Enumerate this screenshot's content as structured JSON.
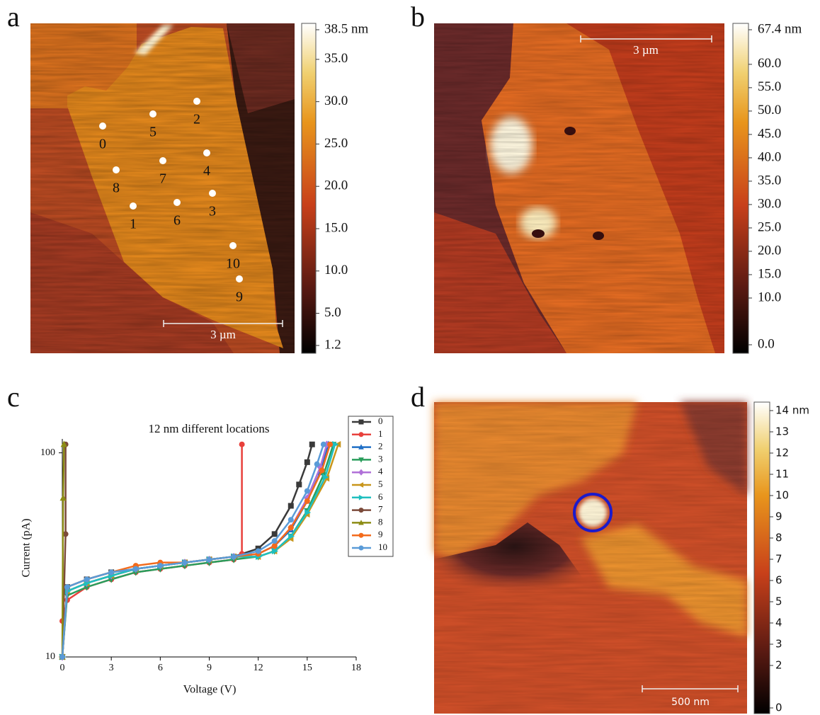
{
  "panel_a": {
    "label": "a",
    "scale_bar": "3 µm",
    "points": [
      "0",
      "1",
      "2",
      "3",
      "4",
      "5",
      "6",
      "7",
      "8",
      "9",
      "10"
    ],
    "colorbar": {
      "range": [
        1.2,
        38.5
      ],
      "ticks": [
        {
          "value": 38.5,
          "label": "38.5 nm"
        },
        {
          "value": 35,
          "label": "35.0"
        },
        {
          "value": 30,
          "label": "30.0"
        },
        {
          "value": 25,
          "label": "25.0"
        },
        {
          "value": 20,
          "label": "20.0"
        },
        {
          "value": 15,
          "label": "15.0"
        },
        {
          "value": 10,
          "label": "10.0"
        },
        {
          "value": 5,
          "label": "5.0"
        },
        {
          "value": 1.2,
          "label": "1.2"
        }
      ]
    }
  },
  "panel_b": {
    "label": "b",
    "scale_bar": "3 µm",
    "colorbar": {
      "range": [
        0,
        67.4
      ],
      "ticks": [
        {
          "value": 67.4,
          "label": "67.4 nm"
        },
        {
          "value": 60,
          "label": "60.0"
        },
        {
          "value": 55,
          "label": "55.0"
        },
        {
          "value": 50,
          "label": "50.0"
        },
        {
          "value": 45,
          "label": "45.0"
        },
        {
          "value": 40,
          "label": "40.0"
        },
        {
          "value": 35,
          "label": "35.0"
        },
        {
          "value": 30,
          "label": "30.0"
        },
        {
          "value": 25,
          "label": "25.0"
        },
        {
          "value": 20,
          "label": "20.0"
        },
        {
          "value": 15,
          "label": "15.0"
        },
        {
          "value": 10,
          "label": "10.0"
        },
        {
          "value": 0,
          "label": "0.0"
        }
      ]
    }
  },
  "panel_c": {
    "label": "c"
  },
  "panel_d": {
    "label": "d",
    "scale_bar": "500 nm",
    "colorbar": {
      "range": [
        0,
        14
      ],
      "ticks": [
        {
          "value": 14,
          "label": "14 nm"
        },
        13,
        12,
        11,
        10,
        9,
        8,
        7,
        6,
        5,
        4,
        3,
        2,
        0
      ]
    }
  },
  "chart_data": {
    "type": "line",
    "title": "12 nm different locations",
    "x_label": "Voltage (V)",
    "y_label": "Current (pA)",
    "xlim": [
      0,
      18
    ],
    "xticks": [
      0,
      3,
      6,
      9,
      12,
      15,
      18
    ],
    "ylim": [
      10,
      117
    ],
    "yticks": [
      10,
      100
    ],
    "log_y": true,
    "series": [
      {
        "name": "0",
        "color": "#3a3a3a",
        "marker": "square",
        "x": [
          0,
          0.3,
          1.5,
          3,
          4.5,
          6,
          7.5,
          9,
          10.5,
          12,
          13,
          14,
          14.5,
          15,
          15.3
        ],
        "values": [
          10,
          22,
          24,
          26,
          27,
          28,
          29,
          30,
          31,
          34,
          40,
          55,
          70,
          90,
          110
        ]
      },
      {
        "name": "1",
        "color": "#e8413c",
        "marker": "circle",
        "x": [
          0,
          0.3,
          1.5,
          3,
          4.5,
          6,
          7.5,
          9,
          10.5,
          11,
          11
        ],
        "values": [
          15,
          19,
          22,
          24,
          26,
          27,
          28,
          29,
          30,
          32,
          110
        ]
      },
      {
        "name": "2",
        "color": "#1f6fc6",
        "marker": "up",
        "x": [
          0,
          0.3,
          1.5,
          3,
          4.5,
          6,
          7.5,
          9,
          10.5,
          12,
          13,
          14,
          15,
          15.8,
          16.3
        ],
        "values": [
          10,
          21,
          23,
          25,
          27,
          28,
          29,
          30,
          31,
          32,
          35,
          42,
          58,
          80,
          110
        ]
      },
      {
        "name": "3",
        "color": "#2a9d5c",
        "marker": "down",
        "x": [
          0,
          0.3,
          1.5,
          3,
          4.5,
          6,
          7.5,
          9,
          10.5,
          12,
          13,
          14,
          15,
          16,
          16.6
        ],
        "values": [
          10,
          20,
          22,
          24,
          26,
          27,
          28,
          29,
          30,
          31,
          33,
          39,
          52,
          78,
          110
        ]
      },
      {
        "name": "4",
        "color": "#b070d8",
        "marker": "diamond",
        "x": [
          0,
          0.3,
          1.5,
          3,
          4.5,
          6,
          7.5,
          9,
          10.5,
          12,
          13,
          14,
          15,
          15.8,
          16.2
        ],
        "values": [
          10,
          21,
          23,
          25,
          27,
          28,
          29,
          30,
          31,
          32,
          35,
          43,
          60,
          85,
          110
        ]
      },
      {
        "name": "5",
        "color": "#c8951a",
        "marker": "left",
        "x": [
          0,
          0.3,
          1.5,
          3,
          4.5,
          6,
          7.5,
          9,
          10.5,
          12,
          13,
          14,
          15,
          16.2,
          16.9
        ],
        "values": [
          10,
          21,
          23,
          25,
          27,
          28,
          29,
          30,
          31,
          31,
          33,
          38,
          50,
          75,
          110
        ]
      },
      {
        "name": "6",
        "color": "#1fbfbf",
        "marker": "right",
        "x": [
          0,
          0.3,
          1.5,
          3,
          4.5,
          6,
          7.5,
          9,
          10.5,
          12,
          13,
          14,
          15,
          16.1,
          16.7
        ],
        "values": [
          10,
          21,
          23,
          25,
          27,
          28,
          29,
          30,
          31,
          31,
          33,
          39,
          51,
          76,
          110
        ]
      },
      {
        "name": "7",
        "color": "#7b4a3a",
        "marker": "circle",
        "x": [
          0,
          0.2,
          0.2
        ],
        "values": [
          10,
          40,
          110
        ]
      },
      {
        "name": "8",
        "color": "#8c8c14",
        "marker": "up",
        "x": [
          0,
          0.05,
          0.1
        ],
        "values": [
          10,
          60,
          110
        ]
      },
      {
        "name": "9",
        "color": "#f36b1c",
        "marker": "circle",
        "x": [
          0,
          0.3,
          1.5,
          3,
          4.5,
          6,
          7.5,
          9,
          10.5,
          12,
          13,
          14,
          15,
          15.9,
          16.4
        ],
        "values": [
          10,
          22,
          24,
          26,
          28,
          29,
          29,
          30,
          31,
          32,
          35,
          43,
          58,
          82,
          110
        ]
      },
      {
        "name": "10",
        "color": "#5a9bd8",
        "marker": "circle",
        "x": [
          0,
          0.3,
          1.5,
          3,
          4.5,
          6,
          7.5,
          9,
          10.5,
          12,
          13,
          14,
          15,
          15.6,
          16
        ],
        "values": [
          10,
          22,
          24,
          26,
          27,
          28,
          29,
          30,
          31,
          33,
          37,
          47,
          65,
          88,
          110
        ]
      }
    ]
  }
}
